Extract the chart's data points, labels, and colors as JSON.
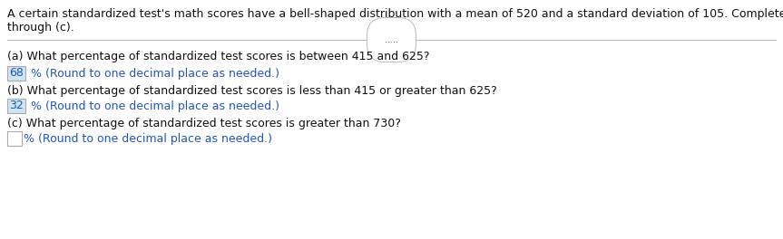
{
  "intro_line1": "A certain standardized test's math scores have a bell-shaped distribution with a mean of 520 and a standard deviation of 105. Complete parts (a)",
  "intro_line2": "through (c).",
  "divider_dots": ".....",
  "part_a_question": "(a) What percentage of standardized test scores is between 415 and 625?",
  "part_a_answer": "68",
  "part_a_suffix": " % (Round to one decimal place as needed.)",
  "part_b_question": "(b) What percentage of standardized test scores is less than 415 or greater than 625?",
  "part_b_answer": "32",
  "part_b_suffix": " % (Round to one decimal place as needed.)",
  "part_c_question": "(c) What percentage of standardized test scores is greater than 730?",
  "part_c_suffix": "% (Round to one decimal place as needed.)",
  "answer_box_color_ab": "#cce5f0",
  "answer_box_color_c": "#ffffff",
  "answer_text_color": "#2255bb",
  "question_text_color": "#111111",
  "intro_text_color": "#111111",
  "bg_color": "#ffffff",
  "line_color": "#bbbbbb",
  "dots_color": "#666666",
  "font_size": 9.0
}
